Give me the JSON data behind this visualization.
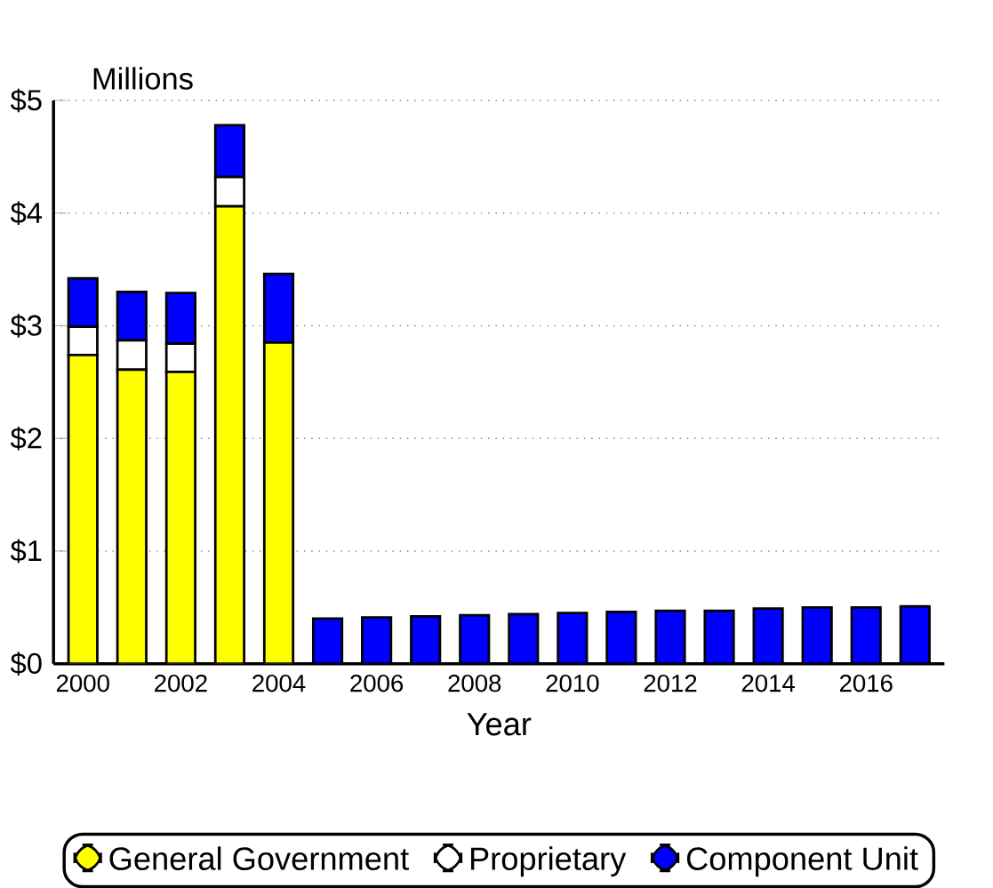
{
  "chart_data": {
    "type": "bar",
    "stacked": true,
    "ylabel": "Millions",
    "xlabel": "Year",
    "categories": [
      "2000",
      null,
      "2002",
      null,
      "2004",
      null,
      "2006",
      null,
      "2008",
      null,
      "2010",
      null,
      "2012",
      null,
      "2014",
      null,
      "2016",
      null
    ],
    "series": [
      {
        "name": "General   Government",
        "color": "#ffff00",
        "values": [
          2.74,
          2.61,
          2.59,
          4.06,
          2.85,
          0,
          0,
          0,
          0,
          0,
          0,
          0,
          0,
          0,
          0,
          0,
          0,
          0
        ]
      },
      {
        "name": "Proprietary",
        "color": "#ffffff",
        "values": [
          0.25,
          0.26,
          0.25,
          0.26,
          0,
          0,
          0,
          0,
          0,
          0,
          0,
          0,
          0,
          0,
          0,
          0,
          0,
          0
        ]
      },
      {
        "name": "Component   Unit",
        "color": "#0000ff",
        "values": [
          0.43,
          0.43,
          0.45,
          0.46,
          0.61,
          0.4,
          0.41,
          0.42,
          0.43,
          0.44,
          0.45,
          0.46,
          0.47,
          0.47,
          0.49,
          0.5,
          0.5,
          0.51
        ]
      }
    ],
    "ylim": [
      0,
      5
    ],
    "yticks": [
      {
        "value": 0,
        "label": "$0"
      },
      {
        "value": 1,
        "label": "$1"
      },
      {
        "value": 2,
        "label": "$2"
      },
      {
        "value": 3,
        "label": "$3"
      },
      {
        "value": 4,
        "label": "$4"
      },
      {
        "value": 5,
        "label": "$5"
      }
    ],
    "grid": "y",
    "legend": "bottom"
  }
}
